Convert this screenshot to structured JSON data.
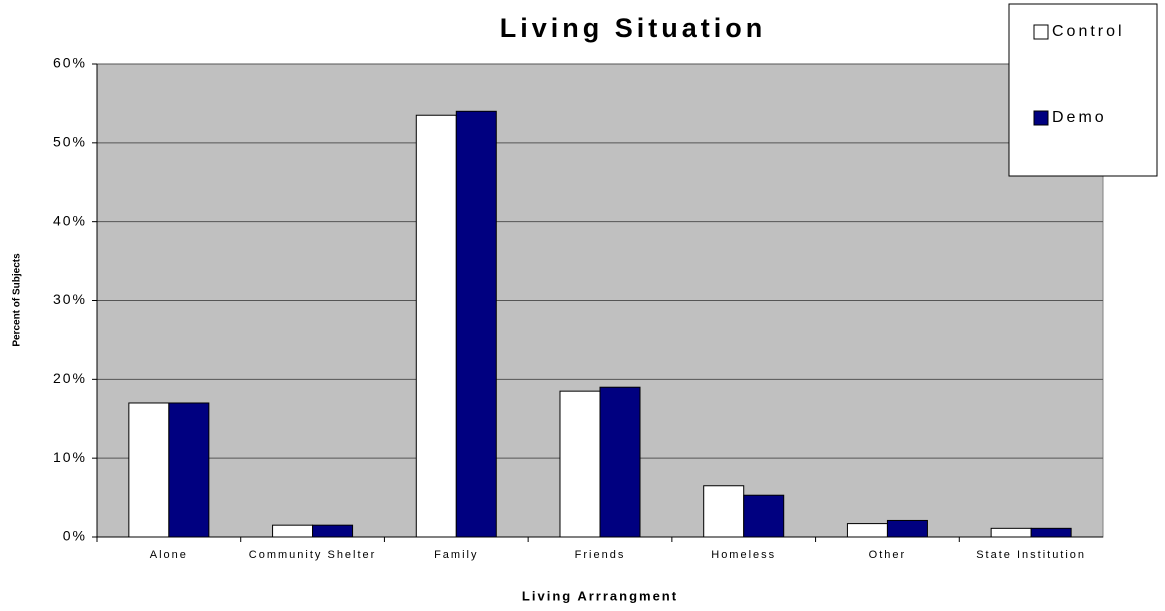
{
  "chart_data": {
    "type": "bar",
    "title": "Living Situation",
    "x_label": "Living Arrrangment",
    "y_label": "Percent of Subjects",
    "categories": [
      "Alone",
      "Community Shelter",
      "Family",
      "Friends",
      "Homeless",
      "Other",
      "State Institution"
    ],
    "series": [
      {
        "name": "Control",
        "color": "#ffffff",
        "values": [
          17,
          1.5,
          53.5,
          18.5,
          6.5,
          1.7,
          1.1
        ]
      },
      {
        "name": "Demo",
        "color": "#000080",
        "values": [
          17,
          1.5,
          54,
          19,
          5.3,
          2.1,
          1.1
        ]
      }
    ],
    "ylim": [
      0,
      60
    ],
    "yticks": [
      {
        "value": 0,
        "label": "0%"
      },
      {
        "value": 10,
        "label": "10%"
      },
      {
        "value": 20,
        "label": "20%"
      },
      {
        "value": 30,
        "label": "30%"
      },
      {
        "value": 40,
        "label": "40%"
      },
      {
        "value": 50,
        "label": "50%"
      },
      {
        "value": 60,
        "label": "60%"
      }
    ],
    "grid": true,
    "legend": "upper right",
    "plot_background": "#c0c0c0"
  }
}
